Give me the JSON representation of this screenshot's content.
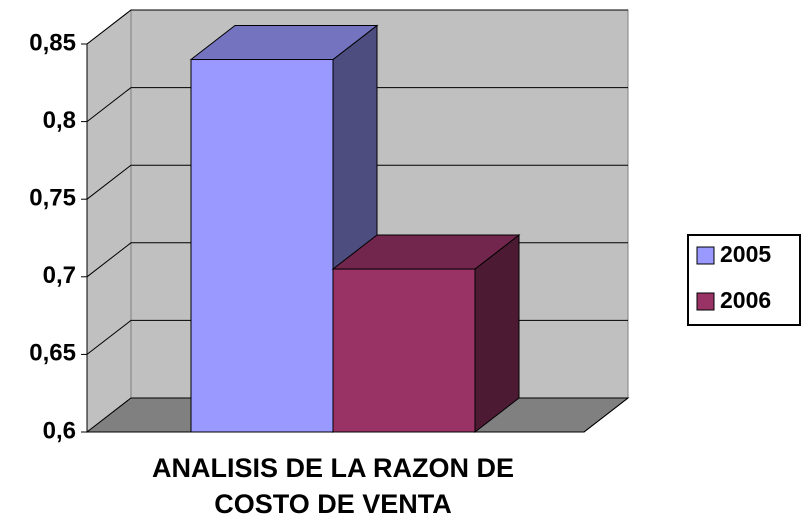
{
  "chart_data": {
    "type": "bar3d",
    "categories": [
      "ANALISIS DE LA RAZON DE COSTO DE VENTA"
    ],
    "series": [
      {
        "name": "2005",
        "color": "#9999ff",
        "values": [
          0.84
        ]
      },
      {
        "name": "2006",
        "color": "#993366",
        "values": [
          0.705
        ]
      }
    ],
    "ylim": [
      0.6,
      0.85
    ],
    "yticks": [
      {
        "value": 0.6,
        "label": "0,6"
      },
      {
        "value": 0.65,
        "label": "0,65"
      },
      {
        "value": 0.7,
        "label": "0,7"
      },
      {
        "value": 0.75,
        "label": "0,75"
      },
      {
        "value": 0.8,
        "label": "0,8"
      },
      {
        "value": 0.85,
        "label": "0,85"
      }
    ],
    "grid": true,
    "legend": "right"
  }
}
